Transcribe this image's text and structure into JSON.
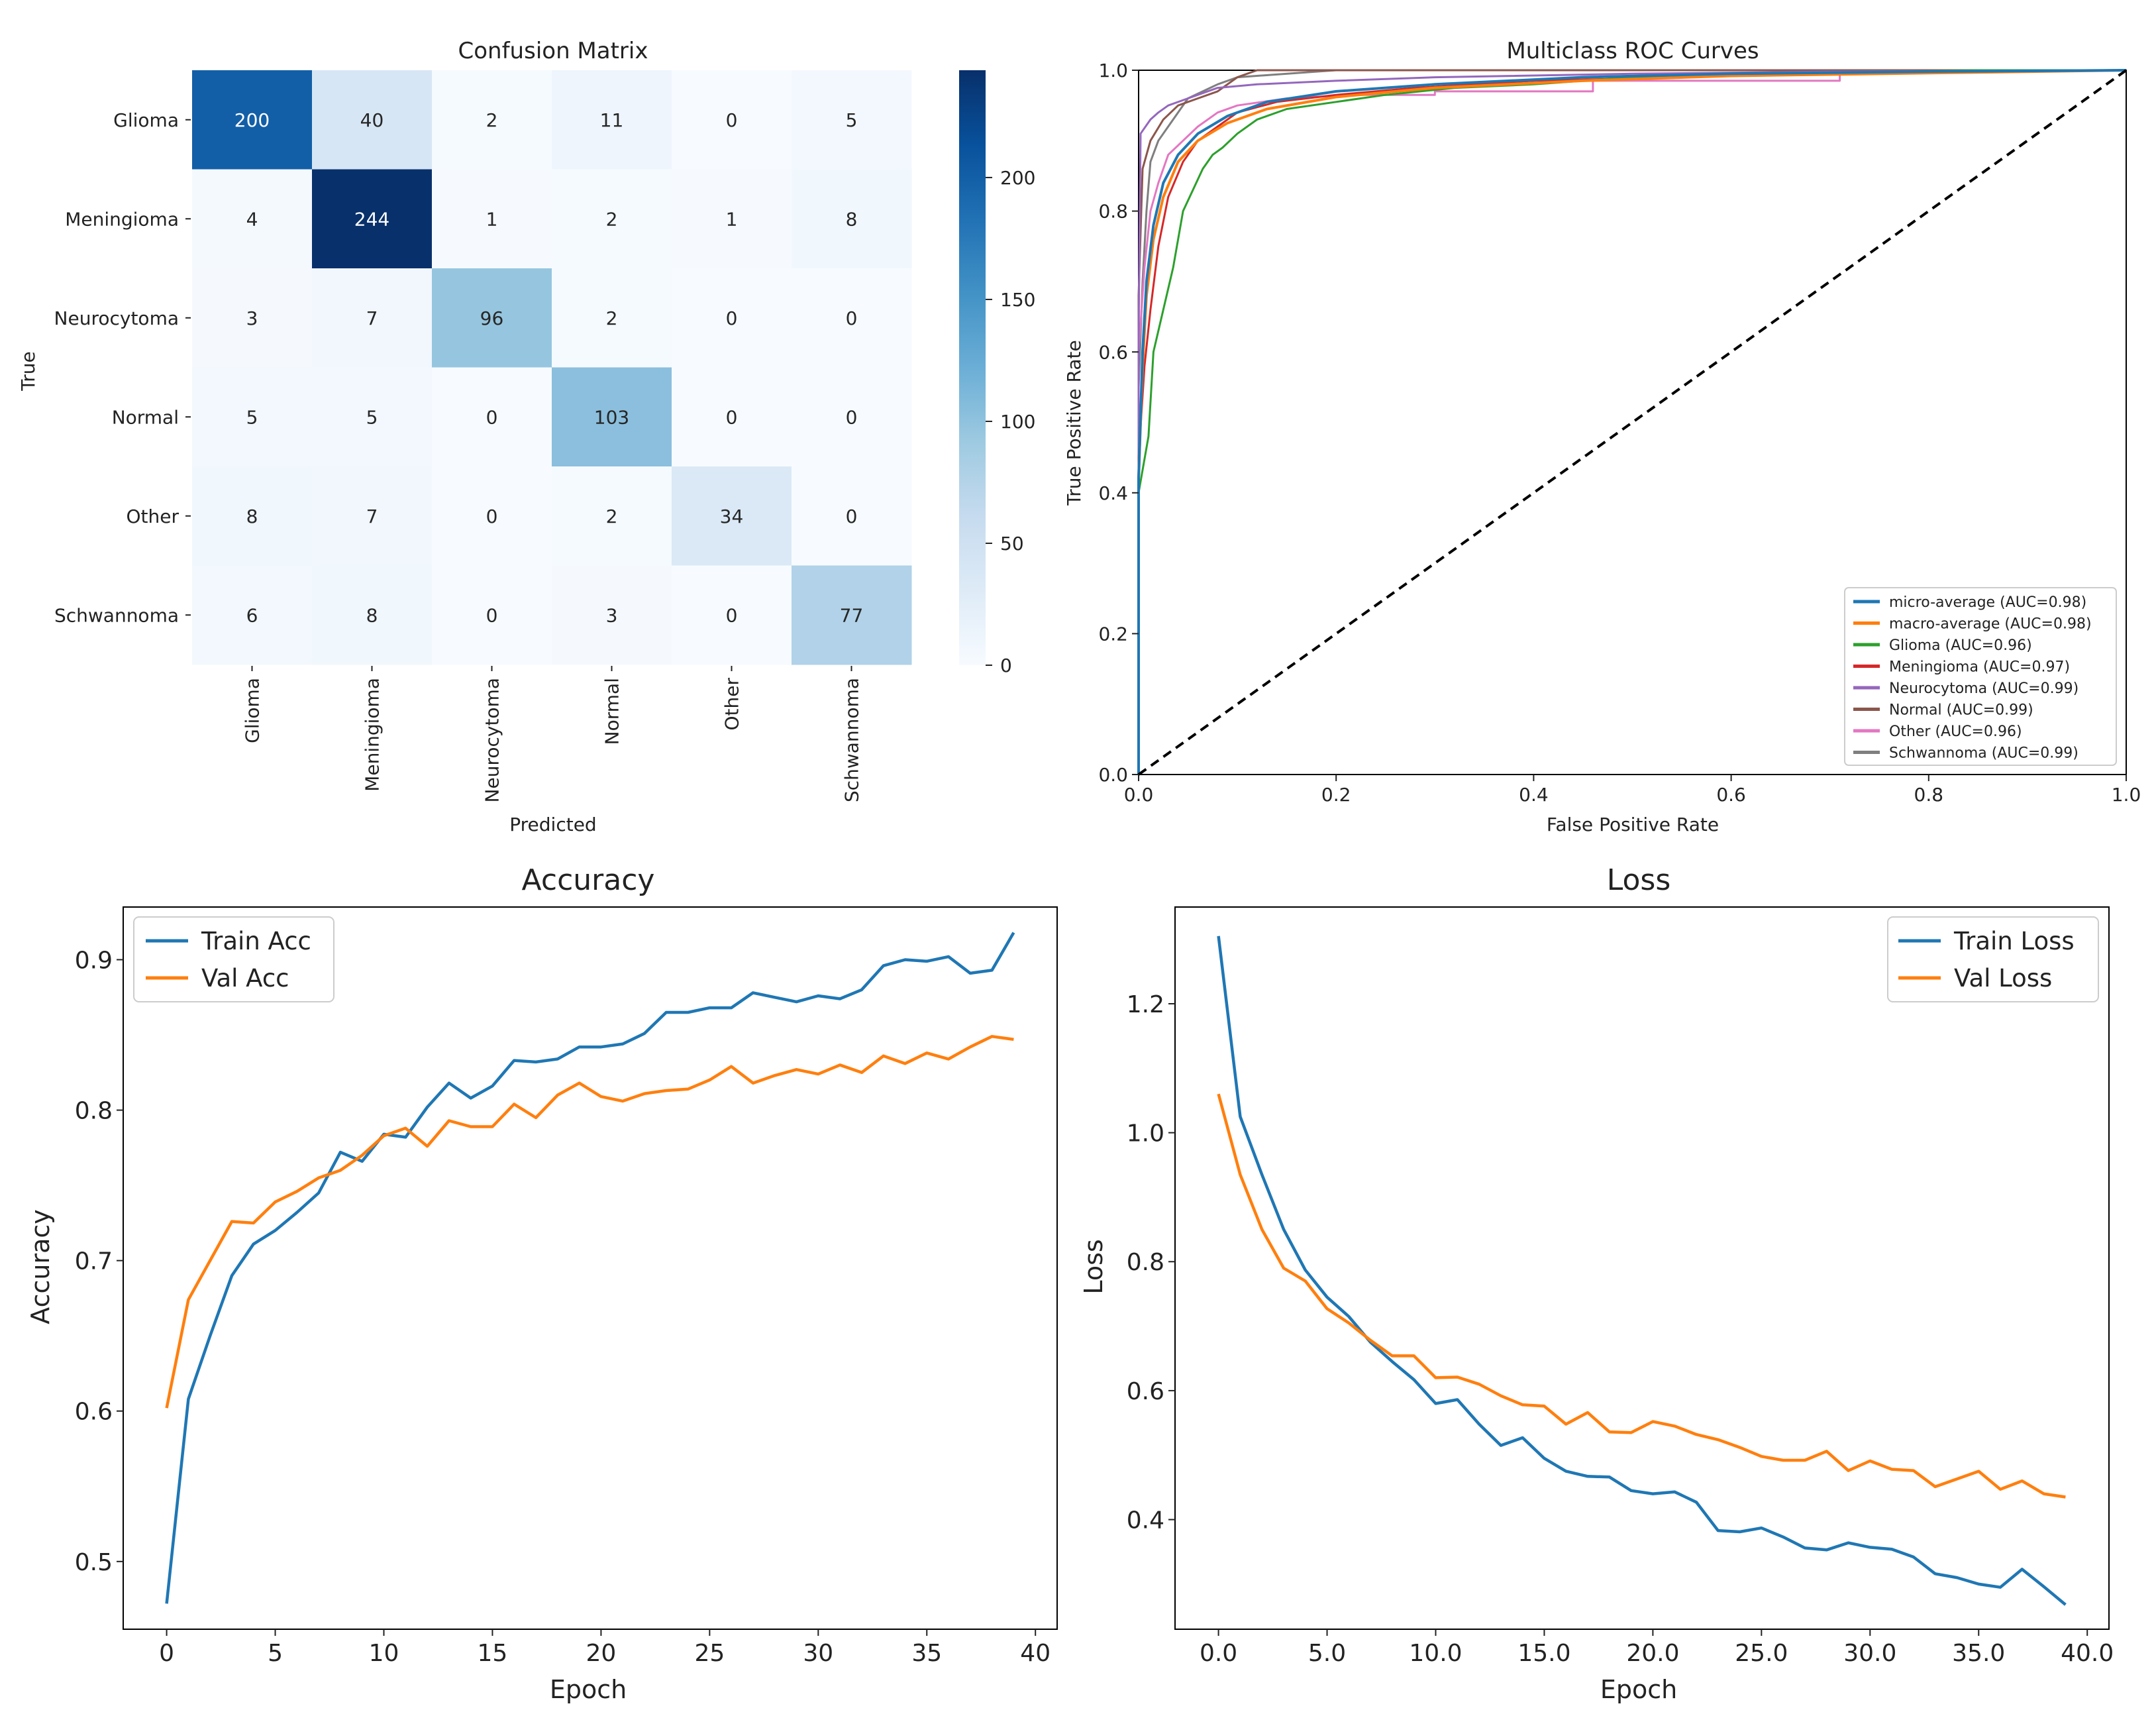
{
  "chart_data": [
    {
      "id": "confusion",
      "type": "heatmap",
      "title": "Confusion Matrix",
      "xlabel": "Predicted",
      "ylabel": "True",
      "labels": [
        "Glioma",
        "Meningioma",
        "Neurocytoma",
        "Normal",
        "Other",
        "Schwannoma"
      ],
      "matrix": [
        [
          200,
          40,
          2,
          11,
          0,
          5
        ],
        [
          4,
          244,
          1,
          2,
          1,
          8
        ],
        [
          3,
          7,
          96,
          2,
          0,
          0
        ],
        [
          5,
          5,
          0,
          103,
          0,
          0
        ],
        [
          8,
          7,
          0,
          2,
          34,
          0
        ],
        [
          6,
          8,
          0,
          3,
          0,
          77
        ]
      ],
      "colorbar_ticks": [
        "0",
        "50",
        "100",
        "150",
        "200"
      ],
      "colorbar_values": [
        0,
        50,
        100,
        150,
        200
      ],
      "vmin": 0,
      "vmax": 244,
      "colormap": [
        "#f7fbff",
        "#deebf7",
        "#c6dbef",
        "#9ecae1",
        "#6baed6",
        "#4292c6",
        "#2171b5",
        "#08519c",
        "#08306b"
      ]
    },
    {
      "id": "roc",
      "type": "line",
      "title": "Multiclass ROC Curves",
      "xlabel": "False Positive Rate",
      "ylabel": "True Positive Rate",
      "xlim": [
        0,
        1
      ],
      "ylim": [
        0,
        1
      ],
      "xticks": [
        "0.0",
        "0.2",
        "0.4",
        "0.6",
        "0.8",
        "1.0"
      ],
      "yticks": [
        "0.0",
        "0.2",
        "0.4",
        "0.6",
        "0.8",
        "1.0"
      ],
      "legend_position": "lower-right",
      "diagonal": [
        [
          0,
          0
        ],
        [
          1,
          1
        ]
      ],
      "series": [
        {
          "name": "micro-average (AUC=0.98)",
          "color": "#1f77b4",
          "width": 4,
          "points": [
            [
              0,
              0
            ],
            [
              0,
              0.42
            ],
            [
              0.004,
              0.6
            ],
            [
              0.008,
              0.7
            ],
            [
              0.015,
              0.78
            ],
            [
              0.025,
              0.84
            ],
            [
              0.04,
              0.88
            ],
            [
              0.06,
              0.91
            ],
            [
              0.09,
              0.935
            ],
            [
              0.13,
              0.955
            ],
            [
              0.2,
              0.97
            ],
            [
              0.3,
              0.98
            ],
            [
              0.45,
              0.99
            ],
            [
              0.6,
              0.995
            ],
            [
              0.8,
              0.998
            ],
            [
              1,
              1
            ]
          ]
        },
        {
          "name": "macro-average (AUC=0.98)",
          "color": "#ff7f0e",
          "width": 4,
          "points": [
            [
              0,
              0
            ],
            [
              0,
              0.42
            ],
            [
              0.004,
              0.58
            ],
            [
              0.008,
              0.68
            ],
            [
              0.015,
              0.76
            ],
            [
              0.025,
              0.82
            ],
            [
              0.04,
              0.87
            ],
            [
              0.06,
              0.9
            ],
            [
              0.09,
              0.925
            ],
            [
              0.13,
              0.945
            ],
            [
              0.2,
              0.962
            ],
            [
              0.3,
              0.975
            ],
            [
              0.45,
              0.985
            ],
            [
              0.6,
              0.992
            ],
            [
              0.8,
              0.996
            ],
            [
              1,
              1
            ]
          ]
        },
        {
          "name": "Glioma (AUC=0.96)",
          "color": "#2ca02c",
          "width": 3,
          "points": [
            [
              0,
              0
            ],
            [
              0,
              0.4
            ],
            [
              0.01,
              0.48
            ],
            [
              0.015,
              0.6
            ],
            [
              0.025,
              0.66
            ],
            [
              0.035,
              0.72
            ],
            [
              0.045,
              0.8
            ],
            [
              0.055,
              0.83
            ],
            [
              0.065,
              0.86
            ],
            [
              0.075,
              0.88
            ],
            [
              0.085,
              0.89
            ],
            [
              0.1,
              0.91
            ],
            [
              0.12,
              0.93
            ],
            [
              0.15,
              0.945
            ],
            [
              0.2,
              0.955
            ],
            [
              0.25,
              0.965
            ],
            [
              0.32,
              0.975
            ],
            [
              0.4,
              0.98
            ],
            [
              0.5,
              0.99
            ],
            [
              0.7,
              0.996
            ],
            [
              0.85,
              1
            ],
            [
              1,
              1
            ]
          ]
        },
        {
          "name": "Meningioma (AUC=0.97)",
          "color": "#d62728",
          "width": 3,
          "points": [
            [
              0,
              0
            ],
            [
              0,
              0.45
            ],
            [
              0.006,
              0.58
            ],
            [
              0.012,
              0.66
            ],
            [
              0.02,
              0.75
            ],
            [
              0.03,
              0.82
            ],
            [
              0.045,
              0.87
            ],
            [
              0.06,
              0.9
            ],
            [
              0.08,
              0.92
            ],
            [
              0.1,
              0.94
            ],
            [
              0.14,
              0.955
            ],
            [
              0.2,
              0.965
            ],
            [
              0.28,
              0.975
            ],
            [
              0.4,
              0.985
            ],
            [
              0.55,
              0.99
            ],
            [
              0.75,
              0.997
            ],
            [
              1,
              1
            ]
          ]
        },
        {
          "name": "Neurocytoma (AUC=0.99)",
          "color": "#9467bd",
          "width": 3,
          "points": [
            [
              0,
              0
            ],
            [
              0,
              0.62
            ],
            [
              0.002,
              0.91
            ],
            [
              0.012,
              0.93
            ],
            [
              0.02,
              0.94
            ],
            [
              0.03,
              0.95
            ],
            [
              0.05,
              0.96
            ],
            [
              0.08,
              0.975
            ],
            [
              0.12,
              0.98
            ],
            [
              0.2,
              0.985
            ],
            [
              0.3,
              0.99
            ],
            [
              0.5,
              0.995
            ],
            [
              0.7,
              0.998
            ],
            [
              1,
              1
            ]
          ]
        },
        {
          "name": "Normal (AUC=0.99)",
          "color": "#8c564b",
          "width": 3,
          "points": [
            [
              0,
              0
            ],
            [
              0,
              0.68
            ],
            [
              0.004,
              0.86
            ],
            [
              0.012,
              0.9
            ],
            [
              0.025,
              0.93
            ],
            [
              0.04,
              0.95
            ],
            [
              0.06,
              0.96
            ],
            [
              0.08,
              0.97
            ],
            [
              0.1,
              0.99
            ],
            [
              0.12,
              1
            ],
            [
              1,
              1
            ]
          ]
        },
        {
          "name": "Other (AUC=0.96)",
          "color": "#e377c2",
          "width": 3,
          "points": [
            [
              0,
              0
            ],
            [
              0,
              0.6
            ],
            [
              0.006,
              0.72
            ],
            [
              0.012,
              0.8
            ],
            [
              0.02,
              0.84
            ],
            [
              0.03,
              0.88
            ],
            [
              0.045,
              0.9
            ],
            [
              0.06,
              0.92
            ],
            [
              0.08,
              0.94
            ],
            [
              0.1,
              0.95
            ],
            [
              0.15,
              0.96
            ],
            [
              0.22,
              0.965
            ],
            [
              0.3,
              0.965
            ],
            [
              0.3,
              0.97
            ],
            [
              0.46,
              0.97
            ],
            [
              0.46,
              0.985
            ],
            [
              0.71,
              0.985
            ],
            [
              0.71,
              1
            ],
            [
              1,
              1
            ]
          ]
        },
        {
          "name": "Schwannoma (AUC=0.99)",
          "color": "#7f7f7f",
          "width": 3,
          "points": [
            [
              0,
              0
            ],
            [
              0,
              0.55
            ],
            [
              0.004,
              0.7
            ],
            [
              0.008,
              0.8
            ],
            [
              0.012,
              0.87
            ],
            [
              0.02,
              0.9
            ],
            [
              0.03,
              0.92
            ],
            [
              0.04,
              0.94
            ],
            [
              0.05,
              0.96
            ],
            [
              0.065,
              0.97
            ],
            [
              0.08,
              0.98
            ],
            [
              0.1,
              0.99
            ],
            [
              0.2,
              1
            ],
            [
              1,
              1
            ]
          ]
        }
      ]
    },
    {
      "id": "accuracy",
      "type": "line",
      "title": "Accuracy",
      "xlabel": "Epoch",
      "ylabel": "Accuracy",
      "xlim": [
        -2,
        41
      ],
      "ylim": [
        0.455,
        0.935
      ],
      "xticks": [
        0,
        5,
        10,
        15,
        20,
        25,
        30,
        35,
        40
      ],
      "yticks": [
        0.5,
        0.6,
        0.7,
        0.8,
        0.9
      ],
      "legend_position": "upper-left",
      "x": [
        0,
        1,
        2,
        3,
        4,
        5,
        6,
        7,
        8,
        9,
        10,
        11,
        12,
        13,
        14,
        15,
        16,
        17,
        18,
        19,
        20,
        21,
        22,
        23,
        24,
        25,
        26,
        27,
        28,
        29,
        30,
        31,
        32,
        33,
        34,
        35,
        36,
        37,
        38,
        39
      ],
      "series": [
        {
          "name": "Train Acc",
          "color": "#1f77b4",
          "values": [
            0.472,
            0.608,
            0.65,
            0.69,
            0.711,
            0.72,
            0.732,
            0.745,
            0.772,
            0.766,
            0.784,
            0.782,
            0.802,
            0.818,
            0.808,
            0.816,
            0.833,
            0.832,
            0.834,
            0.842,
            0.842,
            0.844,
            0.851,
            0.865,
            0.865,
            0.868,
            0.868,
            0.878,
            0.875,
            0.872,
            0.876,
            0.874,
            0.88,
            0.896,
            0.9,
            0.899,
            0.902,
            0.891,
            0.893,
            0.918
          ]
        },
        {
          "name": "Val Acc",
          "color": "#ff7f0e",
          "values": [
            0.602,
            0.674,
            0.7,
            0.726,
            0.725,
            0.739,
            0.746,
            0.755,
            0.76,
            0.77,
            0.783,
            0.788,
            0.776,
            0.793,
            0.789,
            0.789,
            0.804,
            0.795,
            0.81,
            0.818,
            0.809,
            0.806,
            0.811,
            0.813,
            0.814,
            0.82,
            0.829,
            0.818,
            0.823,
            0.827,
            0.824,
            0.83,
            0.825,
            0.836,
            0.831,
            0.838,
            0.834,
            0.842,
            0.849,
            0.847
          ]
        }
      ]
    },
    {
      "id": "loss",
      "type": "line",
      "title": "Loss",
      "xlabel": "Epoch",
      "ylabel": "Loss",
      "xlim": [
        -2,
        41
      ],
      "ylim": [
        0.23,
        1.35
      ],
      "xticks": [
        0,
        5,
        10,
        15,
        20,
        25,
        30,
        35,
        40
      ],
      "yticks": [
        0.4,
        0.6,
        0.8,
        1.0,
        1.2
      ],
      "legend_position": "upper-right",
      "x": [
        0,
        1,
        2,
        3,
        4,
        5,
        6,
        7,
        8,
        9,
        10,
        11,
        12,
        13,
        14,
        15,
        16,
        17,
        18,
        19,
        20,
        21,
        22,
        23,
        24,
        25,
        26,
        27,
        28,
        29,
        30,
        31,
        32,
        33,
        34,
        35,
        36,
        37,
        38,
        39
      ],
      "series": [
        {
          "name": "Train Loss",
          "color": "#1f77b4",
          "values": [
            1.305,
            1.025,
            0.935,
            0.85,
            0.787,
            0.745,
            0.715,
            0.675,
            0.645,
            0.617,
            0.58,
            0.586,
            0.548,
            0.515,
            0.527,
            0.495,
            0.475,
            0.467,
            0.466,
            0.445,
            0.44,
            0.443,
            0.427,
            0.383,
            0.381,
            0.387,
            0.373,
            0.356,
            0.353,
            0.364,
            0.357,
            0.354,
            0.342,
            0.316,
            0.31,
            0.3,
            0.295,
            0.323,
            0.296,
            0.268
          ]
        },
        {
          "name": "Val Loss",
          "color": "#ff7f0e",
          "values": [
            1.06,
            0.935,
            0.85,
            0.79,
            0.77,
            0.727,
            0.705,
            0.678,
            0.654,
            0.654,
            0.62,
            0.621,
            0.61,
            0.592,
            0.578,
            0.576,
            0.548,
            0.566,
            0.536,
            0.535,
            0.552,
            0.545,
            0.532,
            0.524,
            0.512,
            0.498,
            0.492,
            0.492,
            0.506,
            0.476,
            0.491,
            0.478,
            0.476,
            0.451,
            0.463,
            0.475,
            0.447,
            0.46,
            0.44,
            0.435
          ]
        }
      ]
    }
  ]
}
